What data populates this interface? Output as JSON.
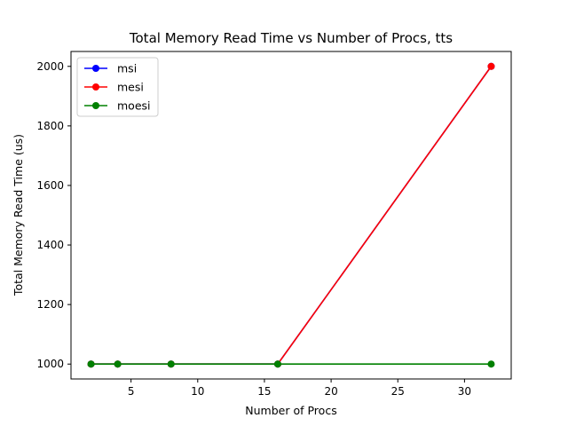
{
  "chart_data": {
    "type": "line",
    "title": "Total Memory Read Time vs Number of Procs, tts",
    "xlabel": "Number of Procs",
    "ylabel": "Total Memory Read Time (us)",
    "xlim": [
      0.5,
      33.5
    ],
    "ylim": [
      950,
      2050
    ],
    "xticks": [
      5,
      10,
      15,
      20,
      25,
      30
    ],
    "yticks": [
      1000,
      1200,
      1400,
      1600,
      1800,
      2000
    ],
    "legend_position": "upper-left",
    "series": [
      {
        "name": "msi",
        "color": "#0000ff",
        "x": [
          2,
          4,
          8,
          16,
          32
        ],
        "y": [
          1000,
          1000,
          1000,
          1000,
          2000
        ]
      },
      {
        "name": "mesi",
        "color": "#ff0000",
        "x": [
          2,
          4,
          8,
          16,
          32
        ],
        "y": [
          1000,
          1000,
          1000,
          1000,
          2000
        ]
      },
      {
        "name": "moesi",
        "color": "#008000",
        "x": [
          2,
          4,
          8,
          16,
          32
        ],
        "y": [
          1000,
          1000,
          1000,
          1000,
          1000
        ]
      }
    ]
  }
}
